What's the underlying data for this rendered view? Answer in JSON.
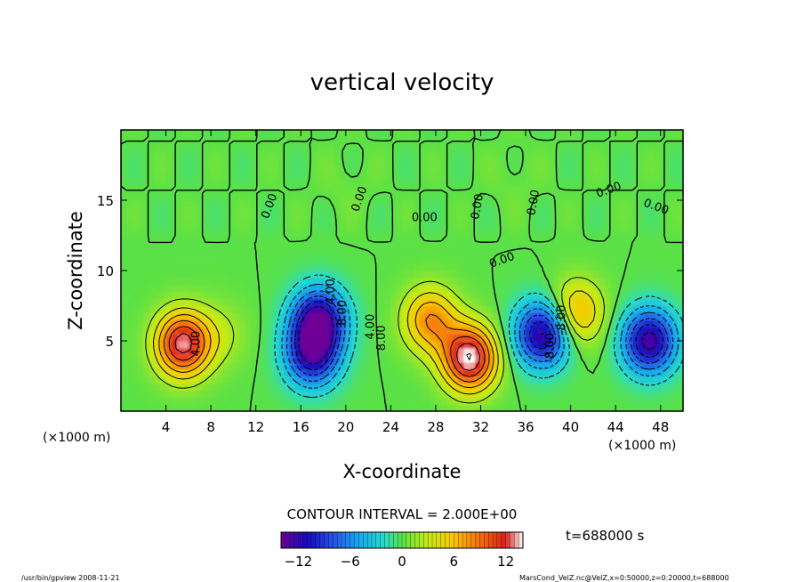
{
  "chart_data": {
    "type": "heatmap",
    "title": "vertical velocity",
    "xlabel": "X-coordinate",
    "ylabel": "Z-coordinate",
    "x_unit_label": "(×1000 m)",
    "y_unit_label": "(×1000 m)",
    "xlim": [
      0,
      50
    ],
    "ylim": [
      0,
      20
    ],
    "xticks": [
      "4",
      "8",
      "12",
      "16",
      "20",
      "24",
      "28",
      "32",
      "36",
      "40",
      "44",
      "48"
    ],
    "yticks": [
      "5",
      "10",
      "15"
    ],
    "contour_interval_text": "CONTOUR INTERVAL = 2.000E+00",
    "time_text": "t=688000 s",
    "colorbar_ticks": [
      "−12",
      "−6",
      "0",
      "6",
      "12"
    ],
    "colorbar_range": [
      -14,
      14
    ],
    "contour_labels": [
      "0.00",
      "0.00",
      "0.00",
      "0.00",
      "0.00",
      "0.00",
      "4.00",
      "4.00",
      "8.00",
      "0.00",
      "4.00",
      "8.00",
      "0.00",
      "-8.00",
      "-8.00"
    ],
    "features": [
      {
        "x": 5.5,
        "z": 4.8,
        "value": 13
      },
      {
        "x": 9.0,
        "z": 5.5,
        "value": 2
      },
      {
        "x": 17.0,
        "z": 4.0,
        "value": -11
      },
      {
        "x": 17.6,
        "z": 6.5,
        "value": -13
      },
      {
        "x": 27.5,
        "z": 6.5,
        "value": 8
      },
      {
        "x": 31.0,
        "z": 3.8,
        "value": 14
      },
      {
        "x": 37.5,
        "z": 5.5,
        "value": -13
      },
      {
        "x": 40.5,
        "z": 7.0,
        "value": 7
      },
      {
        "x": 47.0,
        "z": 5.0,
        "value": -13
      },
      {
        "x": 20.0,
        "z": 16.0,
        "value": 0.5
      },
      {
        "x": 35.0,
        "z": 16.5,
        "value": 0.5
      }
    ]
  },
  "footer": {
    "left": "/usr/bin/gpview  2008-11-21",
    "right": "MarsCond_VelZ.nc@VelZ,x=0:50000,z=0:20000,t=688000"
  },
  "colors": {
    "background": "#ffffff",
    "frame": "#000000"
  }
}
